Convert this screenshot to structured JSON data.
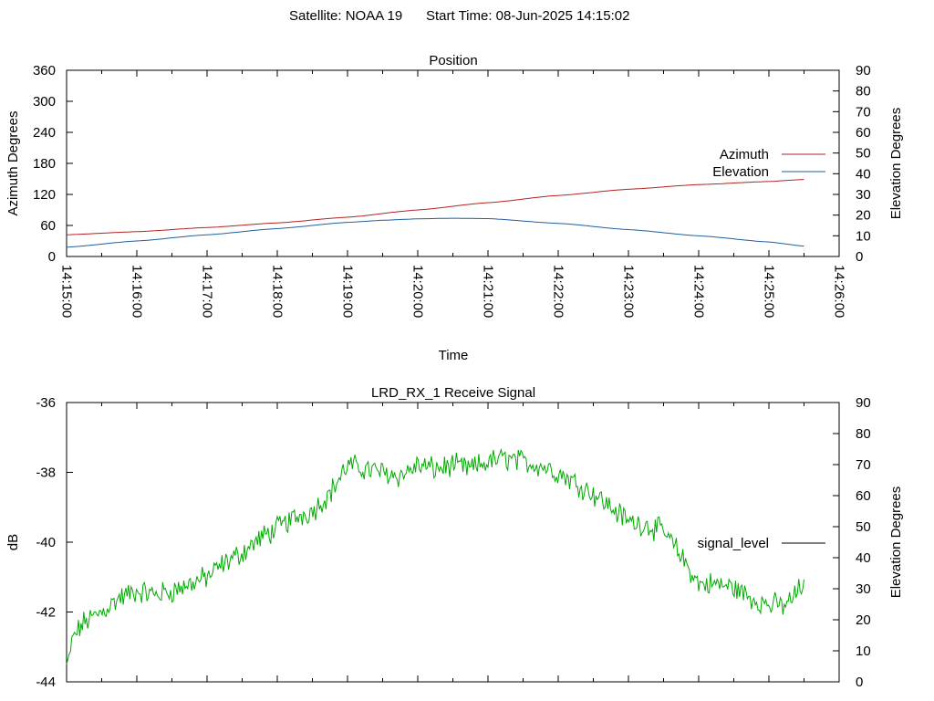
{
  "header": {
    "satellite_label": "Satellite: NOAA 19",
    "start_time_label": "Start Time: 08-Jun-2025 14:15:02"
  },
  "colors": {
    "azimuth": "#b22222",
    "elevation": "#1f5f9f",
    "signal_line": "#00aa00",
    "signal_legend": "#000000"
  },
  "chart_data": [
    {
      "type": "line",
      "title": "Position",
      "xlabel": "Time",
      "ylabel": "Azimuth Degrees",
      "y2label": "Elevation Degrees",
      "x_ticks": [
        "14:15:00",
        "14:16:00",
        "14:17:00",
        "14:18:00",
        "14:19:00",
        "14:20:00",
        "14:21:00",
        "14:22:00",
        "14:23:00",
        "14:24:00",
        "14:25:00",
        "14:26:00"
      ],
      "xlim_minutes": [
        0,
        11
      ],
      "ylim": [
        0,
        360
      ],
      "yticks": [
        0,
        60,
        120,
        180,
        240,
        300,
        360
      ],
      "y2lim": [
        0,
        90
      ],
      "y2ticks": [
        0,
        10,
        20,
        30,
        40,
        50,
        60,
        70,
        80,
        90
      ],
      "legend_position": "right",
      "series": [
        {
          "name": "Azimuth",
          "axis": "y",
          "x_minutes": [
            0,
            1,
            2,
            3,
            4,
            5,
            6,
            7,
            8,
            9,
            10,
            10.5
          ],
          "values": [
            42,
            48,
            56,
            65,
            76,
            90,
            104,
            118,
            130,
            139,
            145,
            149
          ]
        },
        {
          "name": "Elevation",
          "axis": "y2",
          "x_minutes": [
            0,
            1,
            2,
            3,
            4,
            4.5,
            5,
            5.5,
            6,
            7,
            8,
            9,
            10,
            10.5
          ],
          "values": [
            4.5,
            7.5,
            10.5,
            13.5,
            16.5,
            17.5,
            18.2,
            18.5,
            18.3,
            16,
            13,
            10,
            7,
            5
          ]
        }
      ]
    },
    {
      "type": "line",
      "title": "LRD_RX_1 Receive Signal",
      "ylabel": "dB",
      "y2label": "Elevation Degrees",
      "xlim_minutes": [
        0,
        11
      ],
      "ylim": [
        -44,
        -36
      ],
      "yticks": [
        -44,
        -42,
        -40,
        -38,
        -36
      ],
      "y2lim": [
        0,
        90
      ],
      "y2ticks": [
        0,
        10,
        20,
        30,
        40,
        50,
        60,
        70,
        80,
        90
      ],
      "legend_position": "right",
      "series": [
        {
          "name": "signal_level",
          "x_minutes": [
            0,
            0.1,
            0.25,
            0.5,
            0.75,
            1.0,
            1.25,
            1.5,
            1.75,
            2.0,
            2.25,
            2.5,
            2.75,
            3.0,
            3.25,
            3.5,
            3.75,
            4.0,
            4.25,
            4.5,
            4.75,
            5.0,
            5.25,
            5.5,
            5.75,
            6.0,
            6.25,
            6.5,
            6.75,
            7.0,
            7.25,
            7.5,
            7.75,
            8.0,
            8.25,
            8.5,
            8.75,
            9.0,
            9.25,
            9.5,
            9.75,
            10.0,
            10.25,
            10.5
          ],
          "values": [
            -43.5,
            -42.7,
            -42.3,
            -42.0,
            -41.6,
            -41.4,
            -41.5,
            -41.4,
            -41.2,
            -41.0,
            -40.6,
            -40.3,
            -39.9,
            -39.6,
            -39.3,
            -39.1,
            -38.6,
            -37.8,
            -37.9,
            -38.0,
            -38.1,
            -37.8,
            -37.9,
            -37.8,
            -37.9,
            -37.7,
            -37.6,
            -37.7,
            -37.8,
            -38.0,
            -38.3,
            -38.6,
            -39.0,
            -39.4,
            -39.5,
            -39.7,
            -40.4,
            -41.2,
            -41.2,
            -41.3,
            -41.6,
            -41.8,
            -41.8,
            -41.2
          ]
        }
      ]
    }
  ]
}
